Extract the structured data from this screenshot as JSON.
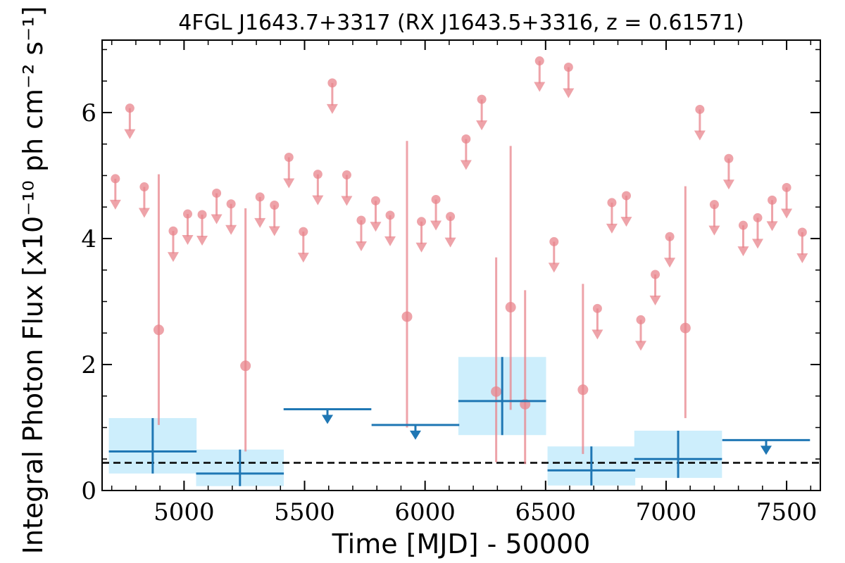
{
  "chart_data": {
    "type": "scatter",
    "title": "4FGL J1643.7+3317 (RX J1643.5+3316, z = 0.61571)",
    "xlabel": "Time [MJD] - 50000",
    "ylabel": "Integral Photon Flux [x10⁻¹⁰ ph cm⁻² s⁻¹]",
    "xlim": [
      4660,
      7640
    ],
    "ylim": [
      0,
      7.15
    ],
    "xticks": [
      5000,
      5500,
      6000,
      6500,
      7000,
      7500
    ],
    "yticks": [
      0,
      2,
      4,
      6
    ],
    "colors": {
      "short_bins": "#e8848c",
      "long_bins": "#1f77b4",
      "long_bins_band": "#cdeefc",
      "mean_line": "#000000"
    },
    "mean_flux": 0.44,
    "long_bins": {
      "detections": [
        {
          "x": 4870,
          "xerr": 182,
          "y": 0.62,
          "ylo": 0.27,
          "yhi": 1.15
        },
        {
          "x": 5232,
          "xerr": 182,
          "y": 0.27,
          "ylo": 0.07,
          "yhi": 0.65
        },
        {
          "x": 6320,
          "xerr": 182,
          "y": 1.42,
          "ylo": 0.88,
          "yhi": 2.12
        },
        {
          "x": 6690,
          "xerr": 182,
          "y": 0.32,
          "ylo": 0.08,
          "yhi": 0.7
        },
        {
          "x": 7050,
          "xerr": 182,
          "y": 0.5,
          "ylo": 0.2,
          "yhi": 0.95
        }
      ],
      "upper_limits": [
        {
          "x": 5595,
          "xerr": 182,
          "y": 1.29
        },
        {
          "x": 5960,
          "xerr": 182,
          "y": 1.04
        },
        {
          "x": 7415,
          "xerr": 182,
          "y": 0.8
        }
      ]
    },
    "short_bins": {
      "detections": [
        {
          "x": 4895,
          "y": 2.55,
          "ylo": 1.04,
          "yhi": 5.02
        },
        {
          "x": 5255,
          "y": 1.98,
          "ylo": 0.62,
          "yhi": 4.48
        },
        {
          "x": 5925,
          "y": 2.76,
          "ylo": 1.0,
          "yhi": 5.55
        },
        {
          "x": 6295,
          "y": 1.57,
          "ylo": 0.45,
          "yhi": 3.7
        },
        {
          "x": 6355,
          "y": 2.91,
          "ylo": 1.28,
          "yhi": 5.47
        },
        {
          "x": 6415,
          "y": 1.37,
          "ylo": 0.42,
          "yhi": 3.18
        },
        {
          "x": 6655,
          "y": 1.6,
          "ylo": 0.58,
          "yhi": 3.28
        },
        {
          "x": 7080,
          "y": 2.58,
          "ylo": 1.15,
          "yhi": 4.83
        }
      ],
      "upper_limits": [
        {
          "x": 4715,
          "y": 4.95
        },
        {
          "x": 4775,
          "y": 6.07
        },
        {
          "x": 4835,
          "y": 4.82
        },
        {
          "x": 4955,
          "y": 4.12
        },
        {
          "x": 5015,
          "y": 4.39
        },
        {
          "x": 5075,
          "y": 4.38
        },
        {
          "x": 5135,
          "y": 4.72
        },
        {
          "x": 5195,
          "y": 4.55
        },
        {
          "x": 5315,
          "y": 4.66
        },
        {
          "x": 5375,
          "y": 4.53
        },
        {
          "x": 5435,
          "y": 5.29
        },
        {
          "x": 5495,
          "y": 4.11
        },
        {
          "x": 5555,
          "y": 5.02
        },
        {
          "x": 5615,
          "y": 6.47
        },
        {
          "x": 5675,
          "y": 5.01
        },
        {
          "x": 5735,
          "y": 4.29
        },
        {
          "x": 5795,
          "y": 4.6
        },
        {
          "x": 5855,
          "y": 4.37
        },
        {
          "x": 5985,
          "y": 4.27
        },
        {
          "x": 6045,
          "y": 4.62
        },
        {
          "x": 6105,
          "y": 4.35
        },
        {
          "x": 6170,
          "y": 5.58
        },
        {
          "x": 6235,
          "y": 6.21
        },
        {
          "x": 6475,
          "y": 6.82
        },
        {
          "x": 6595,
          "y": 6.72
        },
        {
          "x": 6535,
          "y": 3.95
        },
        {
          "x": 6715,
          "y": 2.89
        },
        {
          "x": 6775,
          "y": 4.57
        },
        {
          "x": 6835,
          "y": 4.68
        },
        {
          "x": 6895,
          "y": 2.71
        },
        {
          "x": 6955,
          "y": 3.43
        },
        {
          "x": 7015,
          "y": 4.03
        },
        {
          "x": 7140,
          "y": 6.05
        },
        {
          "x": 7200,
          "y": 4.54
        },
        {
          "x": 7260,
          "y": 5.27
        },
        {
          "x": 7320,
          "y": 4.21
        },
        {
          "x": 7380,
          "y": 4.33
        },
        {
          "x": 7440,
          "y": 4.61
        },
        {
          "x": 7500,
          "y": 4.81
        },
        {
          "x": 7565,
          "y": 4.1
        }
      ]
    }
  }
}
